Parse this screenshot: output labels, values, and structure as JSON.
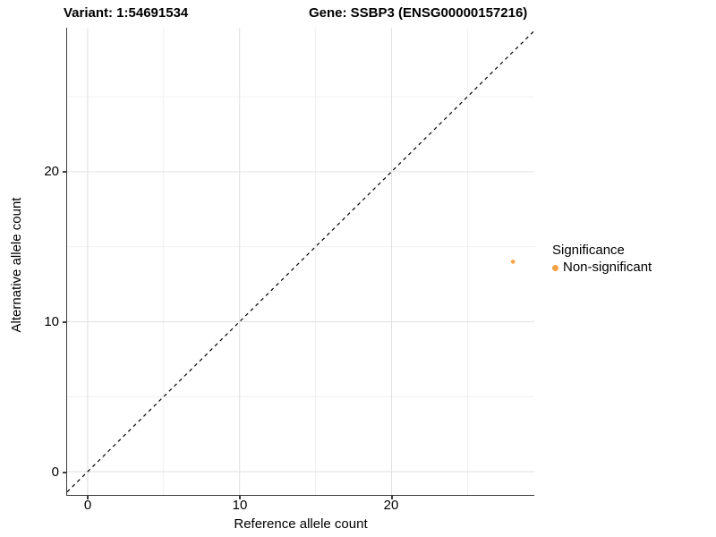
{
  "titles": {
    "variant": "Variant: 1:54691534",
    "gene": "Gene: SSBP3 (ENSG00000157216)"
  },
  "axes": {
    "x_label": "Reference allele count",
    "y_label": "Alternative allele count",
    "x_tick_labels": [
      "0",
      "10",
      "20"
    ],
    "y_tick_labels": [
      "0",
      "10",
      "20"
    ]
  },
  "legend": {
    "title": "Significance",
    "items": [
      {
        "label": "Non-significant",
        "color": "#F9A242"
      }
    ]
  },
  "colors": {
    "background": "#FFFFFF",
    "grid_major": "#E2E2E2",
    "grid_minor": "#EFEFEF",
    "axis_line": "#3C3C3C",
    "text": "#000000",
    "point": "#F9A242",
    "reference_line": "#000000"
  },
  "chart_data": {
    "type": "scatter",
    "title": "Variant: 1:54691534 | Gene: SSBP3 (ENSG00000157216)",
    "xlabel": "Reference allele count",
    "ylabel": "Alternative allele count",
    "xlim": [
      -1.35,
      29.4
    ],
    "ylim": [
      -1.55,
      29.6
    ],
    "x_ticks": [
      0,
      10,
      20
    ],
    "y_ticks": [
      0,
      10,
      20
    ],
    "x_minor_ticks": [
      5,
      15,
      25
    ],
    "y_minor_ticks": [
      5,
      15,
      25
    ],
    "grid": true,
    "legend_position": "right",
    "legend_title": "Significance",
    "series": [
      {
        "name": "Non-significant",
        "color": "#F9A242",
        "point_radius": 2.3,
        "points": [
          {
            "x": 28,
            "y": 14
          }
        ]
      }
    ],
    "reference_line": {
      "slope": 1,
      "intercept": 0,
      "style": "dashed",
      "color": "#000000"
    }
  }
}
